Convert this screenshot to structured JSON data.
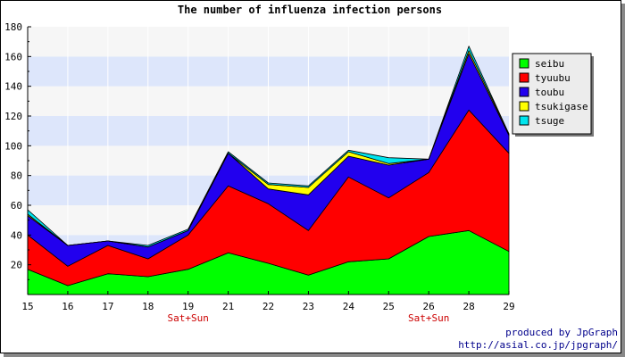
{
  "chart_data": {
    "type": "area",
    "stacked": true,
    "title": "The number of influenza infection persons",
    "x": [
      "15",
      "16",
      "17",
      "18",
      "19",
      "21",
      "22",
      "23",
      "24",
      "25",
      "26",
      "28",
      "29"
    ],
    "x_sublabels": [
      "",
      "",
      "",
      "",
      "Sat+Sun",
      "",
      "",
      "",
      "",
      "",
      "Sat+Sun",
      "",
      ""
    ],
    "ylim": [
      0,
      180
    ],
    "yticks": [
      20,
      40,
      60,
      80,
      100,
      120,
      140,
      160,
      180
    ],
    "grid": "horizontal bands",
    "legend_position": "right-top",
    "series": [
      {
        "name": "seibu",
        "color": "#00ff00",
        "values": [
          17,
          6,
          14,
          12,
          17,
          28,
          21,
          13,
          22,
          24,
          39,
          43,
          29
        ]
      },
      {
        "name": "tyuubu",
        "color": "#ff0000",
        "values": [
          23,
          13,
          19,
          12,
          23,
          45,
          40,
          30,
          57,
          41,
          43,
          81,
          66
        ]
      },
      {
        "name": "toubu",
        "color": "#2200ee",
        "values": [
          13,
          14,
          3,
          8,
          3,
          22,
          10,
          24,
          14,
          22,
          9,
          38,
          12
        ]
      },
      {
        "name": "tsukigase",
        "color": "#ffff00",
        "values": [
          1,
          0,
          0,
          0,
          0,
          0,
          3,
          5,
          3,
          1,
          0,
          2,
          1
        ]
      },
      {
        "name": "tsuge",
        "color": "#00e5ee",
        "values": [
          3,
          0,
          0,
          1,
          1,
          1,
          1,
          1,
          1,
          4,
          0,
          3,
          0
        ]
      }
    ]
  },
  "credit": {
    "line1": "produced by JpGraph",
    "line2": "http://asial.co.jp/jpgraph/"
  }
}
